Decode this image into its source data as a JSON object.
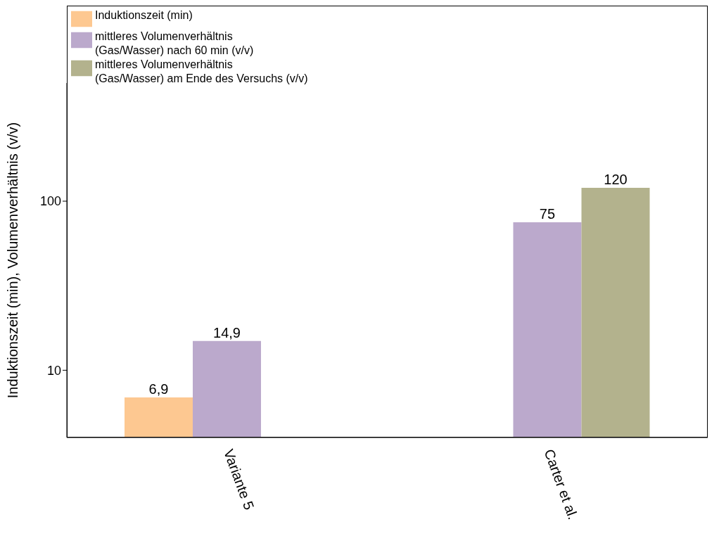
{
  "chart_data": {
    "type": "bar",
    "categories": [
      "Variante 5",
      "Carter et al."
    ],
    "ylabel": "Induktionszeit (min), Volumenverhältnis (v/v)",
    "series": [
      {
        "name": "Induktionszeit (min)",
        "color": "#fdc891",
        "values": [
          6.9,
          null
        ],
        "value_labels": [
          "6,9",
          null
        ]
      },
      {
        "name": "mittleres Volumenverhältnis\n(Gas/Wasser) nach 60 min (v/v)",
        "color": "#bba9cc",
        "values": [
          14.9,
          75
        ],
        "value_labels": [
          "14,9",
          "75"
        ]
      },
      {
        "name": "mittleres Volumenverhältnis\n(Gas/Wasser) am Ende des Versuchs (v/v)",
        "color": "#b3b28d",
        "values": [
          null,
          120
        ],
        "value_labels": [
          null,
          "120"
        ]
      }
    ],
    "log": "y",
    "ylim": [
      4,
      500
    ],
    "yticks": [
      10,
      100
    ],
    "grid": false,
    "legend": "top left"
  }
}
